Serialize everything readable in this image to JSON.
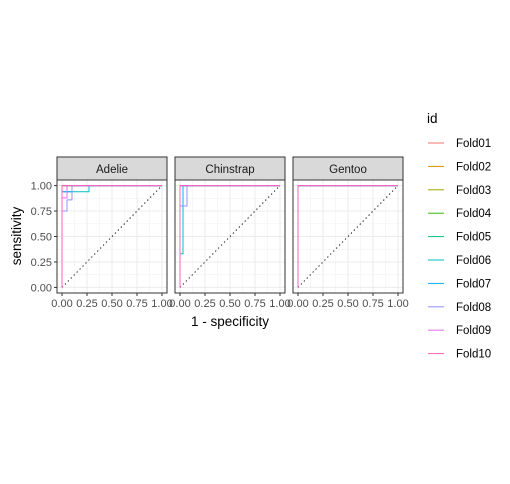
{
  "chart_data": {
    "type": "line",
    "subtype": "roc-curve-facets",
    "xlabel": "1 - specificity",
    "ylabel": "sensitivity",
    "xlim": [
      0,
      1
    ],
    "ylim": [
      0,
      1
    ],
    "x_ticks": [
      "0.00",
      "0.25",
      "0.50",
      "0.75",
      "1.00"
    ],
    "y_ticks": [
      "0.00",
      "0.25",
      "0.50",
      "0.75",
      "1.00"
    ],
    "grid": true,
    "diagonal_reference_line": true,
    "legend": {
      "title": "id",
      "placement": "right",
      "entries": [
        {
          "name": "Fold01",
          "color": "#F8766D"
        },
        {
          "name": "Fold02",
          "color": "#D89000"
        },
        {
          "name": "Fold03",
          "color": "#A3A500"
        },
        {
          "name": "Fold04",
          "color": "#39B600"
        },
        {
          "name": "Fold05",
          "color": "#00BF7D"
        },
        {
          "name": "Fold06",
          "color": "#00BFC4"
        },
        {
          "name": "Fold07",
          "color": "#00B0F6"
        },
        {
          "name": "Fold08",
          "color": "#9590FF"
        },
        {
          "name": "Fold09",
          "color": "#E76BF3"
        },
        {
          "name": "Fold10",
          "color": "#FF62BC"
        }
      ]
    },
    "facets": [
      {
        "name": "Adelie",
        "series": [
          {
            "name": "Fold01",
            "x": [
              0,
              0,
              1
            ],
            "y": [
              0,
              1,
              1
            ]
          },
          {
            "name": "Fold02",
            "x": [
              0,
              0,
              1
            ],
            "y": [
              0,
              1,
              1
            ]
          },
          {
            "name": "Fold03",
            "x": [
              0,
              0,
              1
            ],
            "y": [
              0,
              1,
              1
            ]
          },
          {
            "name": "Fold04",
            "x": [
              0,
              0,
              1
            ],
            "y": [
              0,
              1,
              1
            ]
          },
          {
            "name": "Fold05",
            "x": [
              0,
              0,
              1
            ],
            "y": [
              0,
              1,
              1
            ]
          },
          {
            "name": "Fold06",
            "x": [
              0,
              0,
              0.27,
              0.27,
              1
            ],
            "y": [
              0,
              0.94,
              0.94,
              1,
              1
            ]
          },
          {
            "name": "Fold07",
            "x": [
              0,
              0,
              0.1,
              0.1,
              1
            ],
            "y": [
              0,
              0.94,
              0.94,
              1,
              1
            ]
          },
          {
            "name": "Fold08",
            "x": [
              0,
              0,
              0.05,
              0.05,
              0.1,
              0.1,
              1
            ],
            "y": [
              0,
              0.75,
              0.75,
              0.86,
              0.86,
              1,
              1
            ]
          },
          {
            "name": "Fold09",
            "x": [
              0,
              0,
              0.05,
              0.05,
              1
            ],
            "y": [
              0,
              0.88,
              0.88,
              1,
              1
            ]
          },
          {
            "name": "Fold10",
            "x": [
              0,
              0,
              1
            ],
            "y": [
              0,
              1,
              1
            ]
          }
        ]
      },
      {
        "name": "Chinstrap",
        "series": [
          {
            "name": "Fold01",
            "x": [
              0,
              0,
              1
            ],
            "y": [
              0,
              1,
              1
            ]
          },
          {
            "name": "Fold02",
            "x": [
              0,
              0,
              1
            ],
            "y": [
              0,
              1,
              1
            ]
          },
          {
            "name": "Fold03",
            "x": [
              0,
              0,
              1
            ],
            "y": [
              0,
              1,
              1
            ]
          },
          {
            "name": "Fold04",
            "x": [
              0,
              0,
              1
            ],
            "y": [
              0,
              1,
              1
            ]
          },
          {
            "name": "Fold05",
            "x": [
              0,
              0,
              1
            ],
            "y": [
              0,
              1,
              1
            ]
          },
          {
            "name": "Fold06",
            "x": [
              0,
              0,
              0.03,
              0.03,
              1
            ],
            "y": [
              0,
              0.33,
              0.33,
              1,
              1
            ]
          },
          {
            "name": "Fold07",
            "x": [
              0,
              0,
              0.03,
              0.03,
              1
            ],
            "y": [
              0,
              0.8,
              0.8,
              1,
              1
            ]
          },
          {
            "name": "Fold08",
            "x": [
              0,
              0,
              0.07,
              0.07,
              1
            ],
            "y": [
              0,
              0.8,
              0.8,
              1,
              1
            ]
          },
          {
            "name": "Fold09",
            "x": [
              0,
              0,
              1
            ],
            "y": [
              0,
              1,
              1
            ]
          },
          {
            "name": "Fold10",
            "x": [
              0,
              0,
              1
            ],
            "y": [
              0,
              1,
              1
            ]
          }
        ]
      },
      {
        "name": "Gentoo",
        "series": [
          {
            "name": "Fold01",
            "x": [
              0,
              0,
              1
            ],
            "y": [
              0,
              1,
              1
            ]
          },
          {
            "name": "Fold02",
            "x": [
              0,
              0,
              1
            ],
            "y": [
              0,
              1,
              1
            ]
          },
          {
            "name": "Fold03",
            "x": [
              0,
              0,
              1
            ],
            "y": [
              0,
              1,
              1
            ]
          },
          {
            "name": "Fold04",
            "x": [
              0,
              0,
              1
            ],
            "y": [
              0,
              1,
              1
            ]
          },
          {
            "name": "Fold05",
            "x": [
              0,
              0,
              1
            ],
            "y": [
              0,
              1,
              1
            ]
          },
          {
            "name": "Fold06",
            "x": [
              0,
              0,
              1
            ],
            "y": [
              0,
              1,
              1
            ]
          },
          {
            "name": "Fold07",
            "x": [
              0,
              0,
              1
            ],
            "y": [
              0,
              1,
              1
            ]
          },
          {
            "name": "Fold08",
            "x": [
              0,
              0,
              1
            ],
            "y": [
              0,
              1,
              1
            ]
          },
          {
            "name": "Fold09",
            "x": [
              0,
              0,
              1
            ],
            "y": [
              0,
              1,
              1
            ]
          },
          {
            "name": "Fold10",
            "x": [
              0,
              0,
              1
            ],
            "y": [
              0,
              1,
              1
            ]
          }
        ]
      }
    ]
  }
}
